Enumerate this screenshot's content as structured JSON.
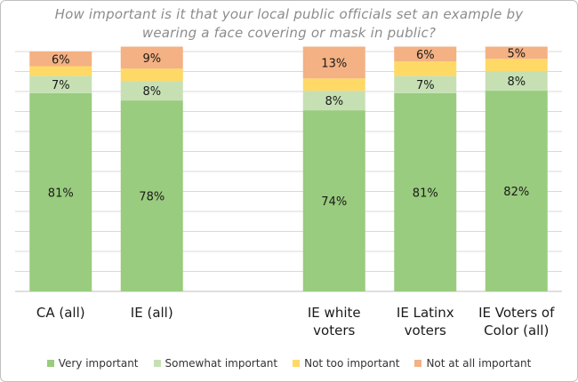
{
  "chart_data": {
    "type": "bar",
    "stacked": true,
    "title": "How important is it that your local public officials set an example by wearing a face covering or mask in public?",
    "categories": [
      [
        "CA (all)"
      ],
      [
        "IE (all)"
      ],
      [
        "IE white",
        "voters"
      ],
      [
        "IE Latinx",
        "voters"
      ],
      [
        "IE Voters of",
        "Color (all)"
      ]
    ],
    "category_gap_after": [
      1
    ],
    "series": [
      {
        "name": "Very important",
        "color": "#99cc7e",
        "values": [
          81,
          78,
          74,
          81,
          82
        ],
        "labels": [
          "81%",
          "78%",
          "74%",
          "81%",
          "82%"
        ]
      },
      {
        "name": "Somewhat important",
        "color": "#c6e0b4",
        "values": [
          7,
          8,
          8,
          7,
          8
        ],
        "labels": [
          "7%",
          "8%",
          "8%",
          "7%",
          "8%"
        ]
      },
      {
        "name": "Not too important",
        "color": "#ffd966",
        "values": [
          4,
          5,
          5,
          6,
          5
        ],
        "labels": [
          "",
          "",
          "",
          "",
          ""
        ]
      },
      {
        "name": "Not at all important",
        "color": "#f4b183",
        "values": [
          6,
          9,
          13,
          6,
          5
        ],
        "labels": [
          "6%",
          "9%",
          "13%",
          "6%",
          "5%"
        ]
      }
    ],
    "ylim": [
      0,
      98
    ],
    "gridlines": 12,
    "xlabel": "",
    "ylabel": "",
    "legend": "bottom"
  }
}
